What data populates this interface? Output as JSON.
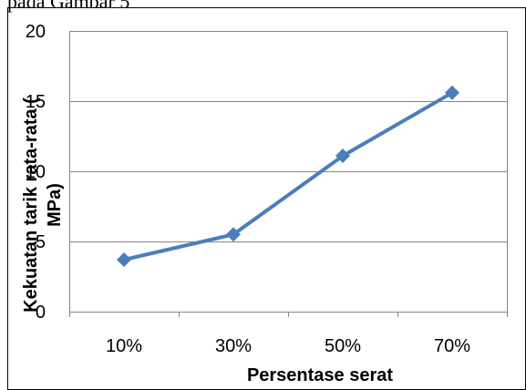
{
  "caption": "pada Gambar 5",
  "chart_data": {
    "type": "line",
    "title": "",
    "xlabel": "Persentase serat",
    "ylabel_line1": "Kekuatan tarik rata-rata (",
    "ylabel_line2": "MPa)",
    "categories": [
      "10%",
      "30%",
      "50%",
      "70%"
    ],
    "series": [
      {
        "values": [
          3.7,
          5.5,
          11.1,
          15.6
        ]
      }
    ],
    "ylim": [
      0,
      20
    ],
    "yticks": [
      "0",
      "5",
      "10",
      "15",
      "20"
    ],
    "grid": true,
    "legend": "none",
    "colors": {
      "line": "#4a7ebb",
      "marker": "#4a7ebb",
      "grid": "#868686",
      "frame": "#868686",
      "chart_border": "#000000"
    },
    "marker": "diamond"
  }
}
